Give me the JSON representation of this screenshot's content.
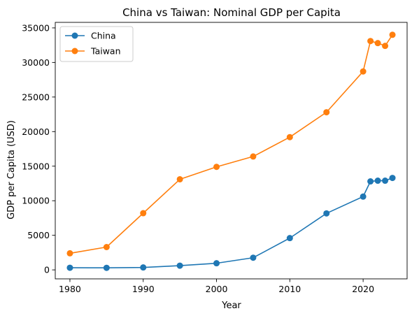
{
  "chart_data": {
    "type": "line",
    "title": "China vs Taiwan: Nominal GDP per Capita",
    "xlabel": "Year",
    "ylabel": "GDP per Capita (USD)",
    "xlim": [
      1978,
      2026
    ],
    "ylim": [
      -1300,
      35800
    ],
    "xticks": [
      1980,
      1990,
      2000,
      2010,
      2020
    ],
    "yticks": [
      0,
      5000,
      10000,
      15000,
      20000,
      25000,
      30000,
      35000
    ],
    "grid": false,
    "legend_position": "upper-left",
    "series": [
      {
        "name": "China",
        "color": "#1f77b4",
        "marker": "circle",
        "x": [
          1980,
          1985,
          1990,
          1995,
          2000,
          2005,
          2010,
          2015,
          2020,
          2021,
          2022,
          2023,
          2024
        ],
        "y": [
          310,
          295,
          350,
          610,
          960,
          1760,
          4600,
          8170,
          10600,
          12800,
          12900,
          12900,
          13300
        ]
      },
      {
        "name": "Taiwan",
        "color": "#ff7f0e",
        "marker": "circle",
        "x": [
          1980,
          1985,
          1990,
          1995,
          2000,
          2005,
          2010,
          2015,
          2020,
          2021,
          2022,
          2023,
          2024
        ],
        "y": [
          2400,
          3300,
          8200,
          13100,
          14900,
          16400,
          19200,
          22800,
          28700,
          33100,
          32800,
          32400,
          34000
        ]
      }
    ]
  }
}
